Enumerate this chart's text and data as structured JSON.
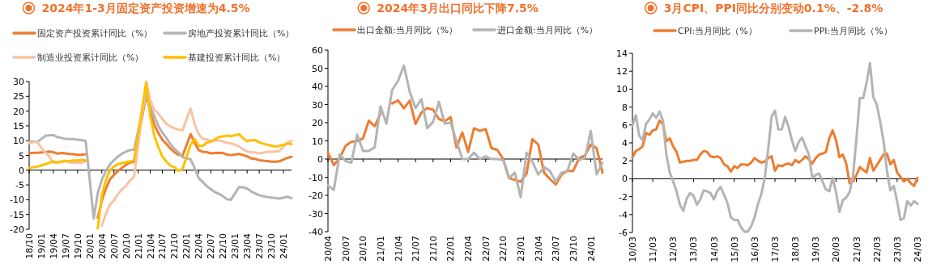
{
  "chart_data": [
    {
      "type": "line",
      "title": "2024年1-3月固定资产投资增速为4.5%",
      "legend": "top",
      "ref_lines": [
        {
          "axis": "y",
          "value": 0
        }
      ],
      "marker": "none",
      "line_style": "solid",
      "ylim": [
        -20,
        30
      ],
      "yticks": [
        -20,
        -15,
        -10,
        -5,
        0,
        5,
        10,
        15,
        20,
        25,
        30
      ],
      "xlim": [
        "2018-10",
        "2024-03"
      ],
      "xticks": [
        {
          "value": "2018-10",
          "label": "18/10"
        },
        {
          "value": "2019-01",
          "label": "19/01"
        },
        {
          "value": "2019-04",
          "label": "19/04"
        },
        {
          "value": "2019-07",
          "label": "19/07"
        },
        {
          "value": "2019-10",
          "label": "19/10"
        },
        {
          "value": "2020-01",
          "label": "20/01"
        },
        {
          "value": "2020-04",
          "label": "20/04"
        },
        {
          "value": "2020-07",
          "label": "20/07"
        },
        {
          "value": "2020-10",
          "label": "20/10"
        },
        {
          "value": "2021-01",
          "label": "21/01"
        },
        {
          "value": "2021-04",
          "label": "21/04"
        },
        {
          "value": "2021-07",
          "label": "21/07"
        },
        {
          "value": "2021-10",
          "label": "21/10"
        },
        {
          "value": "2022-01",
          "label": "22/01"
        },
        {
          "value": "2022-04",
          "label": "22/04"
        },
        {
          "value": "2022-07",
          "label": "22/07"
        },
        {
          "value": "2022-10",
          "label": "22/10"
        },
        {
          "value": "2023-01",
          "label": "23/01"
        },
        {
          "value": "2023-04",
          "label": "23/04"
        },
        {
          "value": "2023-07",
          "label": "23/07"
        },
        {
          "value": "2023-10",
          "label": "23/10"
        },
        {
          "value": "2024-01",
          "label": "24/01"
        }
      ],
      "x": [
        "2018-10",
        "2018-11",
        "2018-12",
        "2019-02",
        "2019-03",
        "2019-04",
        "2019-05",
        "2019-06",
        "2019-07",
        "2019-08",
        "2019-09",
        "2019-10",
        "2019-11",
        "2019-12",
        "2020-02",
        "2020-03",
        "2020-04",
        "2020-05",
        "2020-06",
        "2020-07",
        "2020-08",
        "2020-09",
        "2020-10",
        "2020-11",
        "2020-12",
        "2021-03",
        "2021-04",
        "2021-05",
        "2021-06",
        "2021-07",
        "2021-08",
        "2021-09",
        "2021-10",
        "2021-11",
        "2021-12",
        "2022-02",
        "2022-03",
        "2022-04",
        "2022-05",
        "2022-06",
        "2022-07",
        "2022-08",
        "2022-09",
        "2022-10",
        "2022-11",
        "2022-12",
        "2023-02",
        "2023-03",
        "2023-04",
        "2023-05",
        "2023-06",
        "2023-07",
        "2023-08",
        "2023-09",
        "2023-10",
        "2023-11",
        "2023-12",
        "2024-02",
        "2024-03"
      ],
      "series": [
        {
          "name": "固定资产投资累计同比（%）",
          "color": "#ed7d31",
          "values": [
            5.7,
            5.9,
            5.9,
            6.1,
            6.3,
            6.1,
            5.6,
            5.8,
            5.7,
            5.5,
            5.4,
            5.2,
            5.2,
            5.4,
            null,
            -16.1,
            -10.3,
            -6.3,
            -3.1,
            -1.6,
            -0.3,
            0.8,
            1.8,
            2.6,
            2.9,
            25.6,
            19.9,
            15.4,
            12.6,
            10.3,
            8.9,
            7.3,
            6.1,
            5.2,
            4.9,
            12.2,
            9.3,
            6.8,
            6.2,
            6.1,
            5.7,
            5.8,
            5.9,
            5.8,
            5.3,
            5.1,
            5.5,
            5.1,
            4.7,
            4.0,
            3.8,
            3.4,
            3.2,
            3.1,
            2.9,
            2.9,
            3.0,
            4.2,
            4.5
          ]
        },
        {
          "name": "房地产投资累计同比（%）",
          "color": "#b4b4b4",
          "values": [
            9.7,
            9.7,
            9.5,
            11.6,
            11.8,
            11.9,
            11.2,
            10.9,
            10.6,
            10.5,
            10.5,
            10.3,
            10.2,
            9.9,
            -16.3,
            -7.7,
            -3.3,
            -0.3,
            1.9,
            3.4,
            4.6,
            5.6,
            6.3,
            6.8,
            7.0,
            25.6,
            21.6,
            18.3,
            15.0,
            12.7,
            10.9,
            8.8,
            7.2,
            6.0,
            4.4,
            3.7,
            0.7,
            -2.7,
            -4.0,
            -5.4,
            -6.4,
            -7.4,
            -8.0,
            -8.8,
            -9.8,
            -10.0,
            -5.7,
            -5.8,
            -6.2,
            -7.2,
            -7.9,
            -8.5,
            -8.8,
            -9.1,
            -9.3,
            -9.4,
            -9.6,
            -9.0,
            -9.5
          ]
        },
        {
          "name": "制造业投资累计同比（%）",
          "color": "#f8c4a2",
          "values": [
            9.1,
            9.5,
            9.5,
            5.9,
            4.6,
            2.5,
            2.7,
            3.0,
            3.3,
            2.6,
            2.5,
            2.6,
            2.5,
            3.1,
            null,
            null,
            -18.8,
            -14.8,
            -11.7,
            -10.2,
            -8.1,
            -6.5,
            -5.3,
            -3.5,
            -2.2,
            29.8,
            23.8,
            20.4,
            19.2,
            17.3,
            15.7,
            14.8,
            14.2,
            13.7,
            13.5,
            20.9,
            15.6,
            12.2,
            10.6,
            10.4,
            9.9,
            10.0,
            10.1,
            9.7,
            9.3,
            9.1,
            8.1,
            7.0,
            6.4,
            6.0,
            6.0,
            5.7,
            5.9,
            6.2,
            6.2,
            6.3,
            6.5,
            9.4,
            9.9
          ]
        },
        {
          "name": "基建投资累计同比（%）",
          "color": "#ffc000",
          "values": [
            0.7,
            1.0,
            1.2,
            2.0,
            2.5,
            3.0,
            2.6,
            2.9,
            3.0,
            3.1,
            3.3,
            3.3,
            3.5,
            3.3,
            null,
            -19.7,
            -8.8,
            -3.3,
            -0.1,
            1.2,
            2.0,
            2.4,
            2.7,
            3.0,
            3.4,
            29.7,
            18.4,
            11.8,
            7.8,
            4.6,
            2.9,
            1.5,
            1.0,
            -0.2,
            0.4,
            8.6,
            10.5,
            8.3,
            8.2,
            9.3,
            9.6,
            10.4,
            11.2,
            11.4,
            11.7,
            11.5,
            12.2,
            10.8,
            9.8,
            10.1,
            10.2,
            9.4,
            9.0,
            8.6,
            8.3,
            8.0,
            8.2,
            9.0,
            8.8
          ]
        }
      ]
    },
    {
      "type": "line",
      "title": "2024年3月出口同比下降7.5%",
      "legend": "top",
      "ref_lines": [
        {
          "axis": "y",
          "value": 0
        }
      ],
      "marker": "none",
      "line_style": "solid",
      "ylim": [
        -40,
        60
      ],
      "yticks": [
        -40,
        -30,
        -20,
        -10,
        0,
        10,
        20,
        30,
        40,
        50,
        60
      ],
      "xlim": [
        "2020-04",
        "2024-03"
      ],
      "xticks": [
        {
          "value": "2020-04",
          "label": "20/04"
        },
        {
          "value": "2020-07",
          "label": "20/07"
        },
        {
          "value": "2020-10",
          "label": "20/10"
        },
        {
          "value": "2021-01",
          "label": "21/01"
        },
        {
          "value": "2021-04",
          "label": "21/04"
        },
        {
          "value": "2021-07",
          "label": "21/07"
        },
        {
          "value": "2021-10",
          "label": "21/10"
        },
        {
          "value": "2022-01",
          "label": "22/01"
        },
        {
          "value": "2022-04",
          "label": "22/04"
        },
        {
          "value": "2022-07",
          "label": "22/07"
        },
        {
          "value": "2022-10",
          "label": "22/10"
        },
        {
          "value": "2023-01",
          "label": "23/01"
        },
        {
          "value": "2023-04",
          "label": "23/04"
        },
        {
          "value": "2023-07",
          "label": "23/07"
        },
        {
          "value": "2023-10",
          "label": "23/10"
        },
        {
          "value": "2024-01",
          "label": "24/01"
        }
      ],
      "x": [
        "2020-04",
        "2020-05",
        "2020-06",
        "2020-07",
        "2020-08",
        "2020-09",
        "2020-10",
        "2020-11",
        "2020-12",
        "2021-01",
        "2021-02",
        "2021-03",
        "2021-04",
        "2021-05",
        "2021-06",
        "2021-07",
        "2021-08",
        "2021-09",
        "2021-10",
        "2021-11",
        "2021-12",
        "2022-01",
        "2022-02",
        "2022-03",
        "2022-04",
        "2022-05",
        "2022-06",
        "2022-07",
        "2022-08",
        "2022-09",
        "2022-10",
        "2022-11",
        "2022-12",
        "2023-01",
        "2023-02",
        "2023-03",
        "2023-04",
        "2023-05",
        "2023-06",
        "2023-07",
        "2023-08",
        "2023-09",
        "2023-10",
        "2023-11",
        "2023-12",
        "2024-01",
        "2024-02",
        "2024-03"
      ],
      "series": [
        {
          "name": "出口金额:当月同比（%）",
          "color": "#ed7d31",
          "values": [
            3.5,
            -3.3,
            0.5,
            7.2,
            9.5,
            9.9,
            11.4,
            21.1,
            18.1,
            25,
            null,
            30.6,
            32.3,
            27.9,
            32.2,
            19.3,
            25.6,
            28.1,
            27.1,
            22.0,
            20.9,
            23,
            6.3,
            14.7,
            3.9,
            16.9,
            15.5,
            16.5,
            6,
            5,
            0,
            -10.5,
            -11.5,
            -12.5,
            -8,
            11,
            8,
            -7.5,
            -11,
            -14,
            -8.5,
            -6.5,
            -6.5,
            0.5,
            2,
            8,
            6,
            -7.5
          ]
        },
        {
          "name": "进口金额:当月同比（%）",
          "color": "#b4b4b4",
          "values": [
            -14.5,
            -17,
            2.5,
            -1,
            -2,
            13.5,
            4.5,
            4.5,
            6.5,
            29,
            19.5,
            38,
            43,
            51.5,
            37,
            28,
            33,
            17,
            20.5,
            31.5,
            19.5,
            20,
            10,
            0,
            0,
            3.5,
            0,
            1.5,
            0,
            0,
            -0.5,
            -10.5,
            -7.5,
            -21,
            3.5,
            -1.5,
            -8.5,
            -4.5,
            -6.5,
            -12.5,
            -7.5,
            -6.5,
            3,
            -0.5,
            0.5,
            15.5,
            -8.5,
            -1.9
          ]
        }
      ]
    },
    {
      "type": "line",
      "title": "3月CPI、PPI同比分别变动0.1%、-2.8%",
      "legend": "top",
      "ref_lines": [
        {
          "axis": "y",
          "value": 0
        }
      ],
      "marker": "none",
      "line_style": "solid",
      "ylim": [
        -6,
        14
      ],
      "yticks": [
        -6,
        -4,
        -2,
        0,
        2,
        4,
        6,
        8,
        10,
        12,
        14
      ],
      "xlim": [
        "2010-03",
        "2024-03"
      ],
      "xticks": [
        {
          "value": "2010-03",
          "label": "10/03"
        },
        {
          "value": "2011-03",
          "label": "11/03"
        },
        {
          "value": "2012-03",
          "label": "12/03"
        },
        {
          "value": "2013-03",
          "label": "13/03"
        },
        {
          "value": "2014-03",
          "label": "14/03"
        },
        {
          "value": "2015-03",
          "label": "15/03"
        },
        {
          "value": "2016-03",
          "label": "16/03"
        },
        {
          "value": "2017-03",
          "label": "17/03"
        },
        {
          "value": "2018-03",
          "label": "18/03"
        },
        {
          "value": "2019-03",
          "label": "19/03"
        },
        {
          "value": "2020-03",
          "label": "20/03"
        },
        {
          "value": "2021-03",
          "label": "21/03"
        },
        {
          "value": "2022-03",
          "label": "22/03"
        },
        {
          "value": "2023-03",
          "label": "23/03"
        },
        {
          "value": "2024-03",
          "label": "24/03"
        }
      ],
      "x": [
        "2010-03",
        "2010-05",
        "2010-07",
        "2010-09",
        "2010-11",
        "2011-01",
        "2011-03",
        "2011-05",
        "2011-07",
        "2011-09",
        "2011-11",
        "2012-01",
        "2012-03",
        "2012-05",
        "2012-07",
        "2012-09",
        "2012-11",
        "2013-01",
        "2013-03",
        "2013-05",
        "2013-07",
        "2013-09",
        "2013-11",
        "2014-01",
        "2014-03",
        "2014-05",
        "2014-07",
        "2014-09",
        "2014-11",
        "2015-01",
        "2015-03",
        "2015-05",
        "2015-07",
        "2015-09",
        "2015-11",
        "2016-01",
        "2016-03",
        "2016-05",
        "2016-07",
        "2016-09",
        "2016-11",
        "2017-01",
        "2017-03",
        "2017-05",
        "2017-07",
        "2017-09",
        "2017-11",
        "2018-01",
        "2018-03",
        "2018-05",
        "2018-07",
        "2018-09",
        "2018-11",
        "2019-01",
        "2019-03",
        "2019-05",
        "2019-07",
        "2019-09",
        "2019-11",
        "2020-01",
        "2020-03",
        "2020-05",
        "2020-07",
        "2020-09",
        "2020-11",
        "2021-01",
        "2021-03",
        "2021-05",
        "2021-07",
        "2021-09",
        "2021-11",
        "2022-01",
        "2022-03",
        "2022-05",
        "2022-07",
        "2022-09",
        "2022-11",
        "2023-01",
        "2023-03",
        "2023-05",
        "2023-07",
        "2023-09",
        "2023-11",
        "2024-01",
        "2024-03"
      ],
      "series": [
        {
          "name": "CPI:当月同比（%）",
          "color": "#ed7d31",
          "values": [
            2.4,
            3.1,
            3.3,
            3.6,
            5.1,
            4.9,
            5.4,
            5.5,
            6.5,
            6.1,
            4.2,
            4.5,
            3.6,
            3.0,
            1.8,
            1.9,
            2.0,
            2.0,
            2.1,
            2.1,
            2.7,
            3.1,
            3.0,
            2.5,
            2.4,
            2.5,
            2.3,
            1.6,
            1.4,
            0.8,
            1.4,
            1.2,
            1.6,
            1.6,
            1.5,
            1.8,
            2.3,
            2.0,
            1.8,
            1.9,
            2.3,
            2.5,
            0.9,
            1.5,
            1.4,
            1.6,
            1.7,
            1.5,
            2.1,
            1.8,
            2.1,
            2.5,
            2.2,
            1.7,
            2.3,
            2.7,
            2.8,
            3.0,
            4.5,
            5.4,
            4.3,
            2.4,
            2.7,
            1.7,
            -0.5,
            -0.3,
            0.4,
            1.3,
            1.0,
            0.7,
            2.3,
            0.9,
            1.5,
            2.1,
            2.7,
            2.8,
            1.6,
            2.1,
            0.7,
            0.2,
            -0.3,
            0.0,
            -0.5,
            -0.8,
            0.1
          ]
        },
        {
          "name": "PPI:当月同比（%）",
          "color": "#b4b4b4",
          "values": [
            5.9,
            7.1,
            4.8,
            4.3,
            6.1,
            6.6,
            7.3,
            6.8,
            7.5,
            6.5,
            2.7,
            0.7,
            -0.3,
            -1.4,
            -2.9,
            -3.6,
            -2.2,
            -1.6,
            -1.9,
            -2.9,
            -2.3,
            -1.3,
            -1.4,
            -1.6,
            -2.3,
            -1.4,
            -0.9,
            -1.8,
            -2.7,
            -4.3,
            -4.6,
            -4.6,
            -5.4,
            -5.9,
            -5.9,
            -5.3,
            -4.3,
            -2.8,
            -1.7,
            0.1,
            3.3,
            6.9,
            7.6,
            5.5,
            5.5,
            6.9,
            5.8,
            4.3,
            3.1,
            4.1,
            4.6,
            3.6,
            2.7,
            0.1,
            0.4,
            0.6,
            -0.3,
            -1.2,
            -1.4,
            0.1,
            -1.5,
            -3.7,
            -2.4,
            -2.1,
            -1.5,
            0.3,
            4.4,
            9.0,
            9.0,
            10.7,
            12.9,
            9.1,
            8.3,
            6.4,
            4.2,
            0.9,
            -1.3,
            -0.8,
            -2.5,
            -4.6,
            -4.4,
            -2.5,
            -3.0,
            -2.5,
            -2.8
          ]
        }
      ]
    }
  ]
}
